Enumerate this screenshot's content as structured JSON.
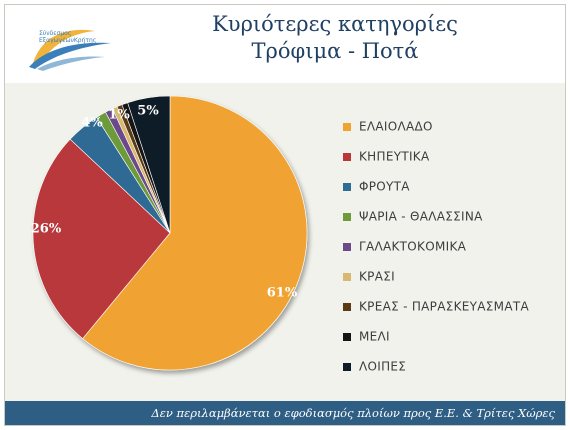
{
  "header": {
    "title_line1": "Κυριότερες κατηγορίες",
    "title_line2": "Τρόφιμα - Ποτά",
    "logo_text": "Σύνδεσμος\nΕξαγωγέωνΚρήτης"
  },
  "footer": {
    "note": "Δεν περιλαμβάνεται ο εφοδιασμός πλοίων προς Ε.Ε. & Τρίτες Χώρες"
  },
  "chart_data": {
    "type": "pie",
    "title": "",
    "start_angle_deg": 0,
    "direction": "clockwise",
    "legend_position": "right",
    "slices": [
      {
        "name": "ΕΛΑΙΟΛΑΔΟ",
        "value": 61,
        "label": "61%",
        "color": "#f0a330"
      },
      {
        "name": "ΚΗΠΕΥΤΙΚΑ",
        "value": 26,
        "label": "26%",
        "color": "#b8383a"
      },
      {
        "name": "ΦΡΟΥΤΑ",
        "value": 4,
        "label": "4%",
        "color": "#2f6b93"
      },
      {
        "name": "ΨΑΡΙΑ - ΘΑΛΑΣΣΙΝΑ",
        "value": 1.2,
        "label": "1%",
        "color": "#6d9a3b"
      },
      {
        "name": "ΓΑΛΑΚΤΟΚΟΜΙΚΑ",
        "value": 0.9,
        "label": "",
        "color": "#6c4a8a"
      },
      {
        "name": "ΚΡΑΣΙ",
        "value": 0.6,
        "label": "",
        "color": "#d9b870"
      },
      {
        "name": "ΚΡΕΑΣ - ΠΑΡΑΣΚΕΥΑΣΜΑΤΑ",
        "value": 0.6,
        "label": "",
        "color": "#5a3a14"
      },
      {
        "name": "ΜΕΛΙ",
        "value": 0.7,
        "label": "",
        "color": "#151515"
      },
      {
        "name": "ΛΟΙΠΕΣ",
        "value": 5,
        "label": "5%",
        "color": "#0f1b26"
      }
    ]
  }
}
